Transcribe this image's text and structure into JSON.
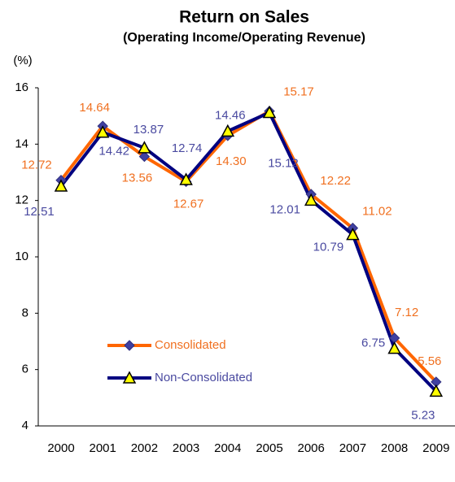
{
  "chart_data": {
    "type": "line",
    "title": "Return on Sales",
    "subtitle": "(Operating Income/Operating Revenue)",
    "y_label": "(%)",
    "categories": [
      "2000",
      "2001",
      "2002",
      "2003",
      "2004",
      "2005",
      "2006",
      "2007",
      "2008",
      "2009"
    ],
    "series": [
      {
        "name": "Consolidated",
        "color": "#ff6600",
        "marker_color": "#4040a0",
        "label_color": "#f07020",
        "values": [
          12.72,
          14.64,
          13.56,
          12.67,
          14.3,
          15.17,
          12.22,
          11.02,
          7.12,
          5.56
        ],
        "value_labels": [
          "12.72",
          "14.64",
          "13.56",
          "12.67",
          "14.30",
          "15.17",
          "12.22",
          "11.02",
          "7.12",
          "5.56"
        ]
      },
      {
        "name": "Non-Consolidated",
        "color": "#000080",
        "marker_color": "#ffff00",
        "label_color": "#4a4aa0",
        "values": [
          12.51,
          14.42,
          13.87,
          12.74,
          14.46,
          15.12,
          12.01,
          10.79,
          6.75,
          5.23
        ],
        "value_labels": [
          "12.51",
          "14.42",
          "13.87",
          "12.74",
          "14.46",
          "15.12",
          "12.01",
          "10.79",
          "6.75",
          "5.23"
        ]
      }
    ],
    "ylim": [
      4,
      16
    ],
    "yticks": [
      4,
      6,
      8,
      10,
      12,
      14,
      16
    ],
    "grid": false,
    "legend": "lower left"
  }
}
